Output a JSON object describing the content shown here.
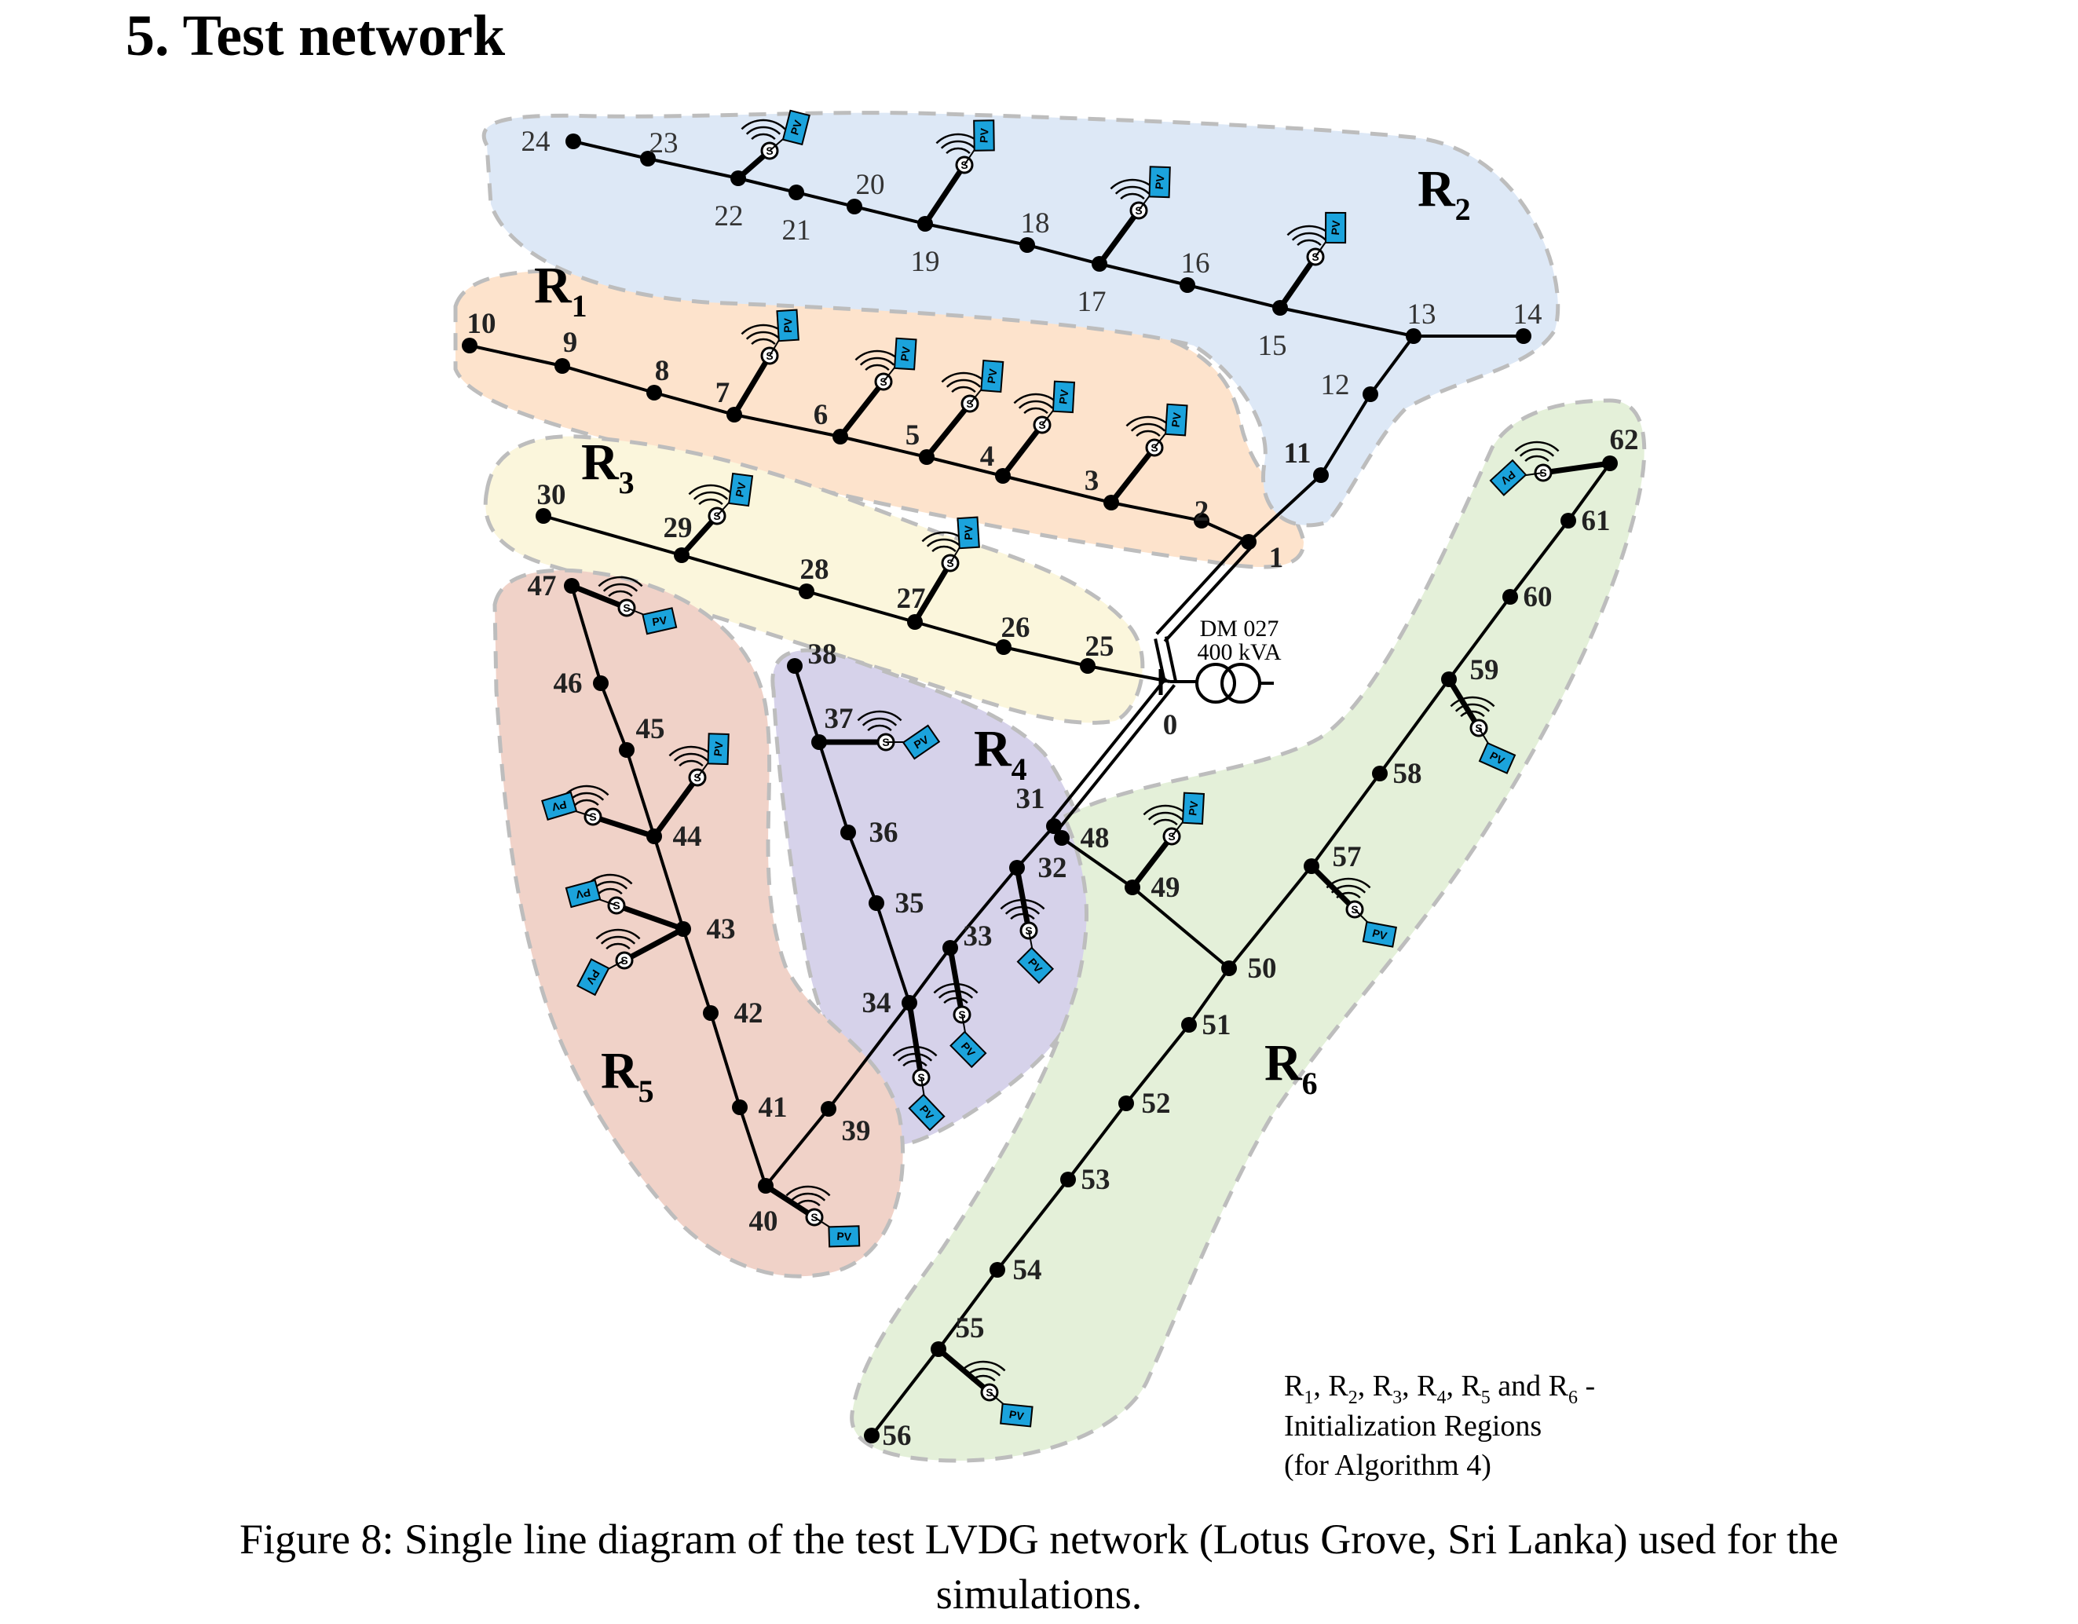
{
  "heading": "5. Test network",
  "caption": {
    "line1": "Figure 8: Single line diagram of the test LVDG network (Lotus Grove, Sri Lanka) used for the",
    "line2": "simulations."
  },
  "transformer": {
    "name": "DM 027",
    "rating": "400 kVA"
  },
  "legend": {
    "regions": [
      {
        "base": "R",
        "sub": "1"
      },
      {
        "base": "R",
        "sub": "2"
      },
      {
        "base": "R",
        "sub": "3"
      },
      {
        "base": "R",
        "sub": "4"
      },
      {
        "base": "R",
        "sub": "5"
      },
      {
        "base": "R",
        "sub": "6"
      }
    ],
    "line1_suffix": " and ",
    "line1_dash": " -",
    "line2": "Initialization Regions",
    "line3": "(for Algorithm 4)"
  },
  "regions": [
    {
      "id": "R1",
      "base": "R",
      "sub": "1",
      "color": "#fde3cc"
    },
    {
      "id": "R2",
      "base": "R",
      "sub": "2",
      "color": "#dde8f6"
    },
    {
      "id": "R3",
      "base": "R",
      "sub": "3",
      "color": "#fbf6dc"
    },
    {
      "id": "R4",
      "base": "R",
      "sub": "4",
      "color": "#d6d2ea"
    },
    {
      "id": "R5",
      "base": "R",
      "sub": "5",
      "color": "#f0d2c8"
    },
    {
      "id": "R6",
      "base": "R",
      "sub": "6",
      "color": "#e4f0d9"
    }
  ],
  "pv_label": "PV",
  "sensor_label": "S",
  "pv_color": "#1ba3dc",
  "buses": [
    {
      "id": "0",
      "label": "0"
    },
    {
      "id": "1",
      "label": "1"
    },
    {
      "id": "2",
      "label": "2"
    },
    {
      "id": "3",
      "label": "3"
    },
    {
      "id": "4",
      "label": "4"
    },
    {
      "id": "5",
      "label": "5"
    },
    {
      "id": "6",
      "label": "6"
    },
    {
      "id": "7",
      "label": "7"
    },
    {
      "id": "8",
      "label": "8"
    },
    {
      "id": "9",
      "label": "9"
    },
    {
      "id": "10",
      "label": "10"
    },
    {
      "id": "11",
      "label": "11"
    },
    {
      "id": "12",
      "label": "12"
    },
    {
      "id": "13",
      "label": "13"
    },
    {
      "id": "14",
      "label": "14"
    },
    {
      "id": "15",
      "label": "15"
    },
    {
      "id": "16",
      "label": "16"
    },
    {
      "id": "17",
      "label": "17"
    },
    {
      "id": "18",
      "label": "18"
    },
    {
      "id": "19",
      "label": "19"
    },
    {
      "id": "20",
      "label": "20"
    },
    {
      "id": "21",
      "label": "21"
    },
    {
      "id": "22",
      "label": "22"
    },
    {
      "id": "23",
      "label": "23"
    },
    {
      "id": "24",
      "label": "24"
    },
    {
      "id": "25",
      "label": "25"
    },
    {
      "id": "26",
      "label": "26"
    },
    {
      "id": "27",
      "label": "27"
    },
    {
      "id": "28",
      "label": "28"
    },
    {
      "id": "29",
      "label": "29"
    },
    {
      "id": "30",
      "label": "30"
    },
    {
      "id": "31",
      "label": "31"
    },
    {
      "id": "32",
      "label": "32"
    },
    {
      "id": "33",
      "label": "33"
    },
    {
      "id": "34",
      "label": "34"
    },
    {
      "id": "35",
      "label": "35"
    },
    {
      "id": "36",
      "label": "36"
    },
    {
      "id": "37",
      "label": "37"
    },
    {
      "id": "38",
      "label": "38"
    },
    {
      "id": "39",
      "label": "39"
    },
    {
      "id": "40",
      "label": "40"
    },
    {
      "id": "41",
      "label": "41"
    },
    {
      "id": "42",
      "label": "42"
    },
    {
      "id": "43",
      "label": "43"
    },
    {
      "id": "44",
      "label": "44"
    },
    {
      "id": "45",
      "label": "45"
    },
    {
      "id": "46",
      "label": "46"
    },
    {
      "id": "47",
      "label": "47"
    },
    {
      "id": "48",
      "label": "48"
    },
    {
      "id": "49",
      "label": "49"
    },
    {
      "id": "50",
      "label": "50"
    },
    {
      "id": "51",
      "label": "51"
    },
    {
      "id": "52",
      "label": "52"
    },
    {
      "id": "53",
      "label": "53"
    },
    {
      "id": "54",
      "label": "54"
    },
    {
      "id": "55",
      "label": "55"
    },
    {
      "id": "56",
      "label": "56"
    },
    {
      "id": "57",
      "label": "57"
    },
    {
      "id": "58",
      "label": "58"
    },
    {
      "id": "59",
      "label": "59"
    },
    {
      "id": "60",
      "label": "60"
    },
    {
      "id": "61",
      "label": "61"
    },
    {
      "id": "62",
      "label": "62"
    }
  ]
}
